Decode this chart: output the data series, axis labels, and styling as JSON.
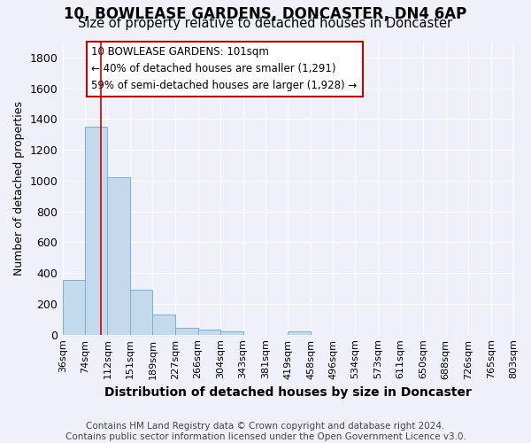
{
  "title": "10, BOWLEASE GARDENS, DONCASTER, DN4 6AP",
  "subtitle": "Size of property relative to detached houses in Doncaster",
  "xlabel": "Distribution of detached houses by size in Doncaster",
  "ylabel": "Number of detached properties",
  "footer": "Contains HM Land Registry data © Crown copyright and database right 2024.\nContains public sector information licensed under the Open Government Licence v3.0.",
  "bar_edges": [
    36,
    74,
    112,
    151,
    189,
    227,
    266,
    304,
    343,
    381,
    419,
    458,
    496,
    534,
    573,
    611,
    650,
    688,
    726,
    765,
    803
  ],
  "bar_heights": [
    355,
    1350,
    1020,
    290,
    130,
    45,
    35,
    20,
    0,
    0,
    20,
    0,
    0,
    0,
    0,
    0,
    0,
    0,
    0,
    0
  ],
  "bar_color": "#c5d9ec",
  "bar_edgecolor": "#7aafd4",
  "property_sqm": 101,
  "redline_color": "#cc0000",
  "annotation_line1": "10 BOWLEASE GARDENS: 101sqm",
  "annotation_line2": "← 40% of detached houses are smaller (1,291)",
  "annotation_line3": "59% of semi-detached houses are larger (1,928) →",
  "ylim": [
    0,
    1900
  ],
  "yticks": [
    0,
    200,
    400,
    600,
    800,
    1000,
    1200,
    1400,
    1600,
    1800
  ],
  "bg_color": "#eef2f8",
  "plot_bg_color": "#eef2f8",
  "grid_color": "#ffffff",
  "title_fontsize": 12,
  "subtitle_fontsize": 10.5,
  "xlabel_fontsize": 10,
  "ylabel_fontsize": 9,
  "tick_fontsize": 8,
  "footer_fontsize": 7.5
}
